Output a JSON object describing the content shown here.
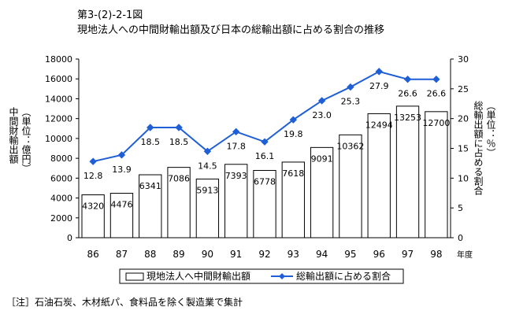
{
  "figure_id": "第3-(2)-2-1図",
  "title": "現地法人への中間財輸出額及び日本の総輸出額に占める割合の推移",
  "footnote": "［注］石油石炭、木材紙パ、食料品を除く製造業で集計",
  "chart_data": {
    "type": "bar",
    "categories": [
      "86",
      "87",
      "88",
      "89",
      "90",
      "91",
      "92",
      "93",
      "94",
      "95",
      "96",
      "97",
      "98"
    ],
    "x_unit": "年度",
    "series": [
      {
        "name": "現地法人へ中間財輸出額",
        "type": "bar",
        "axis": "left",
        "values": [
          4320,
          4476,
          6341,
          7086,
          5913,
          7393,
          6778,
          7618,
          9091,
          10362,
          12494,
          13253,
          12700
        ]
      },
      {
        "name": "総輸出額に占める割合",
        "type": "line",
        "axis": "right",
        "values": [
          12.8,
          13.9,
          18.5,
          18.5,
          14.5,
          17.8,
          16.1,
          19.8,
          23.0,
          25.3,
          27.9,
          26.6,
          26.6
        ],
        "labels": [
          "12.8",
          "13.9",
          "18.5",
          "18.5",
          "14.5",
          "17.8",
          "16.1",
          "19.8",
          "23.0",
          "25.3",
          "27.9",
          "26.6",
          "26.6"
        ]
      }
    ],
    "ylabel_left": [
      "中間財輸出額",
      "（単位：億円）"
    ],
    "ylabel_right": [
      "総輸出額に占める割合",
      "（単位：％）"
    ],
    "ylim_left": [
      0,
      18000
    ],
    "ylim_right": [
      0,
      30
    ],
    "yticks_left": [
      "0",
      "2000",
      "4000",
      "6000",
      "8000",
      "10000",
      "12000",
      "14000",
      "16000",
      "18000"
    ],
    "yticks_right": [
      "0",
      "5",
      "10",
      "15",
      "20",
      "25",
      "30"
    ],
    "legend_position": "bottom",
    "colors": {
      "bar_fill": "#ffffff",
      "bar_stroke": "#000000",
      "line": "#1f5fd6",
      "marker": "#1f5fd6"
    }
  }
}
